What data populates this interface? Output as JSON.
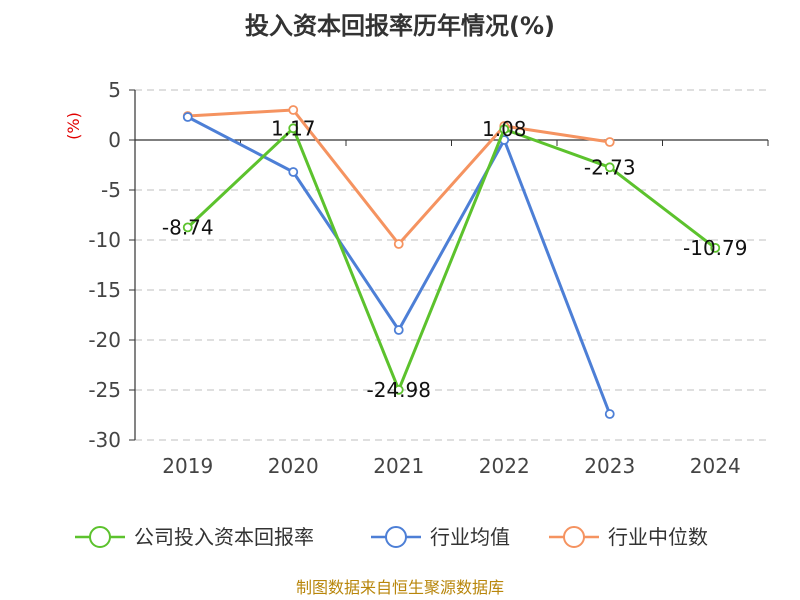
{
  "chart_data": {
    "type": "line",
    "title": "投入资本回报率历年情况(%)",
    "ylabel": "(%)",
    "xlabel": "",
    "categories": [
      "2019",
      "2020",
      "2021",
      "2022",
      "2023",
      "2024"
    ],
    "ylim": [
      -30,
      5
    ],
    "yticks": [
      5,
      0,
      -5,
      -10,
      -15,
      -20,
      -25,
      -30
    ],
    "grid": true,
    "legend_position": "bottom",
    "series": [
      {
        "name": "公司投入资本回报率",
        "color": "#5cc22d",
        "values": [
          -8.74,
          1.17,
          -24.98,
          1.08,
          -2.73,
          -10.79
        ],
        "labels": [
          "-8.74",
          "1.17",
          "-24.98",
          "1.08",
          "-2.73",
          "-10.79"
        ]
      },
      {
        "name": "行业均值",
        "color": "#4d7fd6",
        "values": [
          2.3,
          -3.2,
          -19.0,
          0.0,
          -27.4,
          null
        ]
      },
      {
        "name": "行业中位数",
        "color": "#f59360",
        "values": [
          2.4,
          3.0,
          -10.4,
          1.4,
          -0.2,
          null
        ]
      }
    ]
  },
  "footer": {
    "source": "制图数据来自恒生聚源数据库"
  }
}
